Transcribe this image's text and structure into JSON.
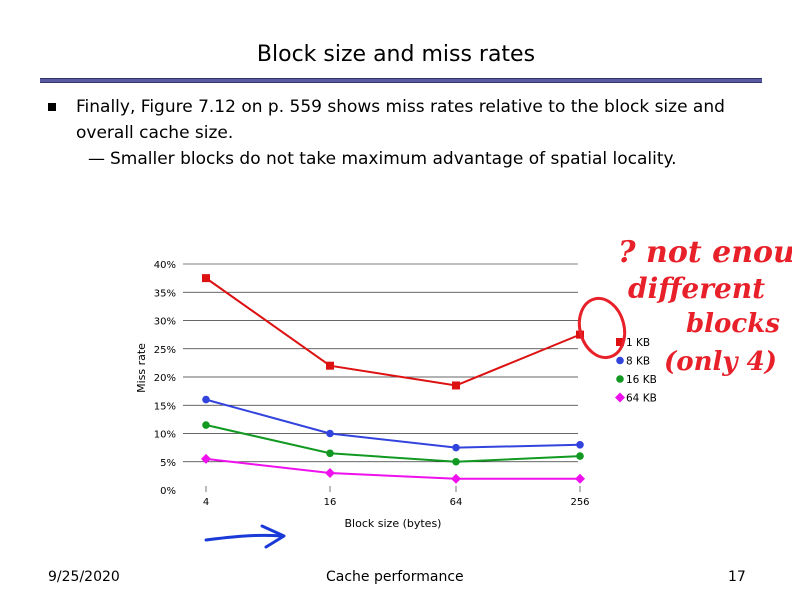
{
  "slide": {
    "title": "Block size and miss rates",
    "bullet": "Finally, Figure 7.12 on p. 559 shows miss rates relative to the block size and overall cache size.",
    "sub_bullet_dash": "—",
    "sub_bullet": "Smaller blocks do not take maximum advantage of spatial locality."
  },
  "footer": {
    "date": "9/25/2020",
    "center": "Cache performance",
    "page": "17"
  },
  "annotation": {
    "line1": "? not enough",
    "line2": "different",
    "line3": "blocks",
    "line4": "(only 4)"
  },
  "colors": {
    "1KB": "#dd1111",
    "8KB": "#3344dd",
    "16KB": "#119922",
    "64KB": "#ee11ee",
    "annotation": "#e8202a",
    "arrow": "#1a3ad8"
  },
  "chart_data": {
    "type": "line",
    "categories": [
      "4",
      "16",
      "64",
      "256"
    ],
    "series": [
      {
        "name": "1 KB",
        "values": [
          37.5,
          22,
          18.5,
          27.5
        ],
        "marker": "square",
        "color": "#dd1111"
      },
      {
        "name": "8 KB",
        "values": [
          16,
          10,
          7.5,
          8
        ],
        "marker": "circle",
        "color": "#3344dd"
      },
      {
        "name": "16 KB",
        "values": [
          11.5,
          6.5,
          5,
          6
        ],
        "marker": "circle",
        "color": "#119922"
      },
      {
        "name": "64 KB",
        "values": [
          5.5,
          3,
          2,
          2
        ],
        "marker": "diamond",
        "color": "#ee11ee"
      }
    ],
    "yticks": [
      "0%",
      "5%",
      "10%",
      "15%",
      "20%",
      "25%",
      "30%",
      "35%",
      "40%"
    ],
    "xlabel": "Block size (bytes)",
    "ylabel": "Miss rate",
    "ylim": [
      0,
      40
    ],
    "legend_position": "right",
    "grid": true
  }
}
